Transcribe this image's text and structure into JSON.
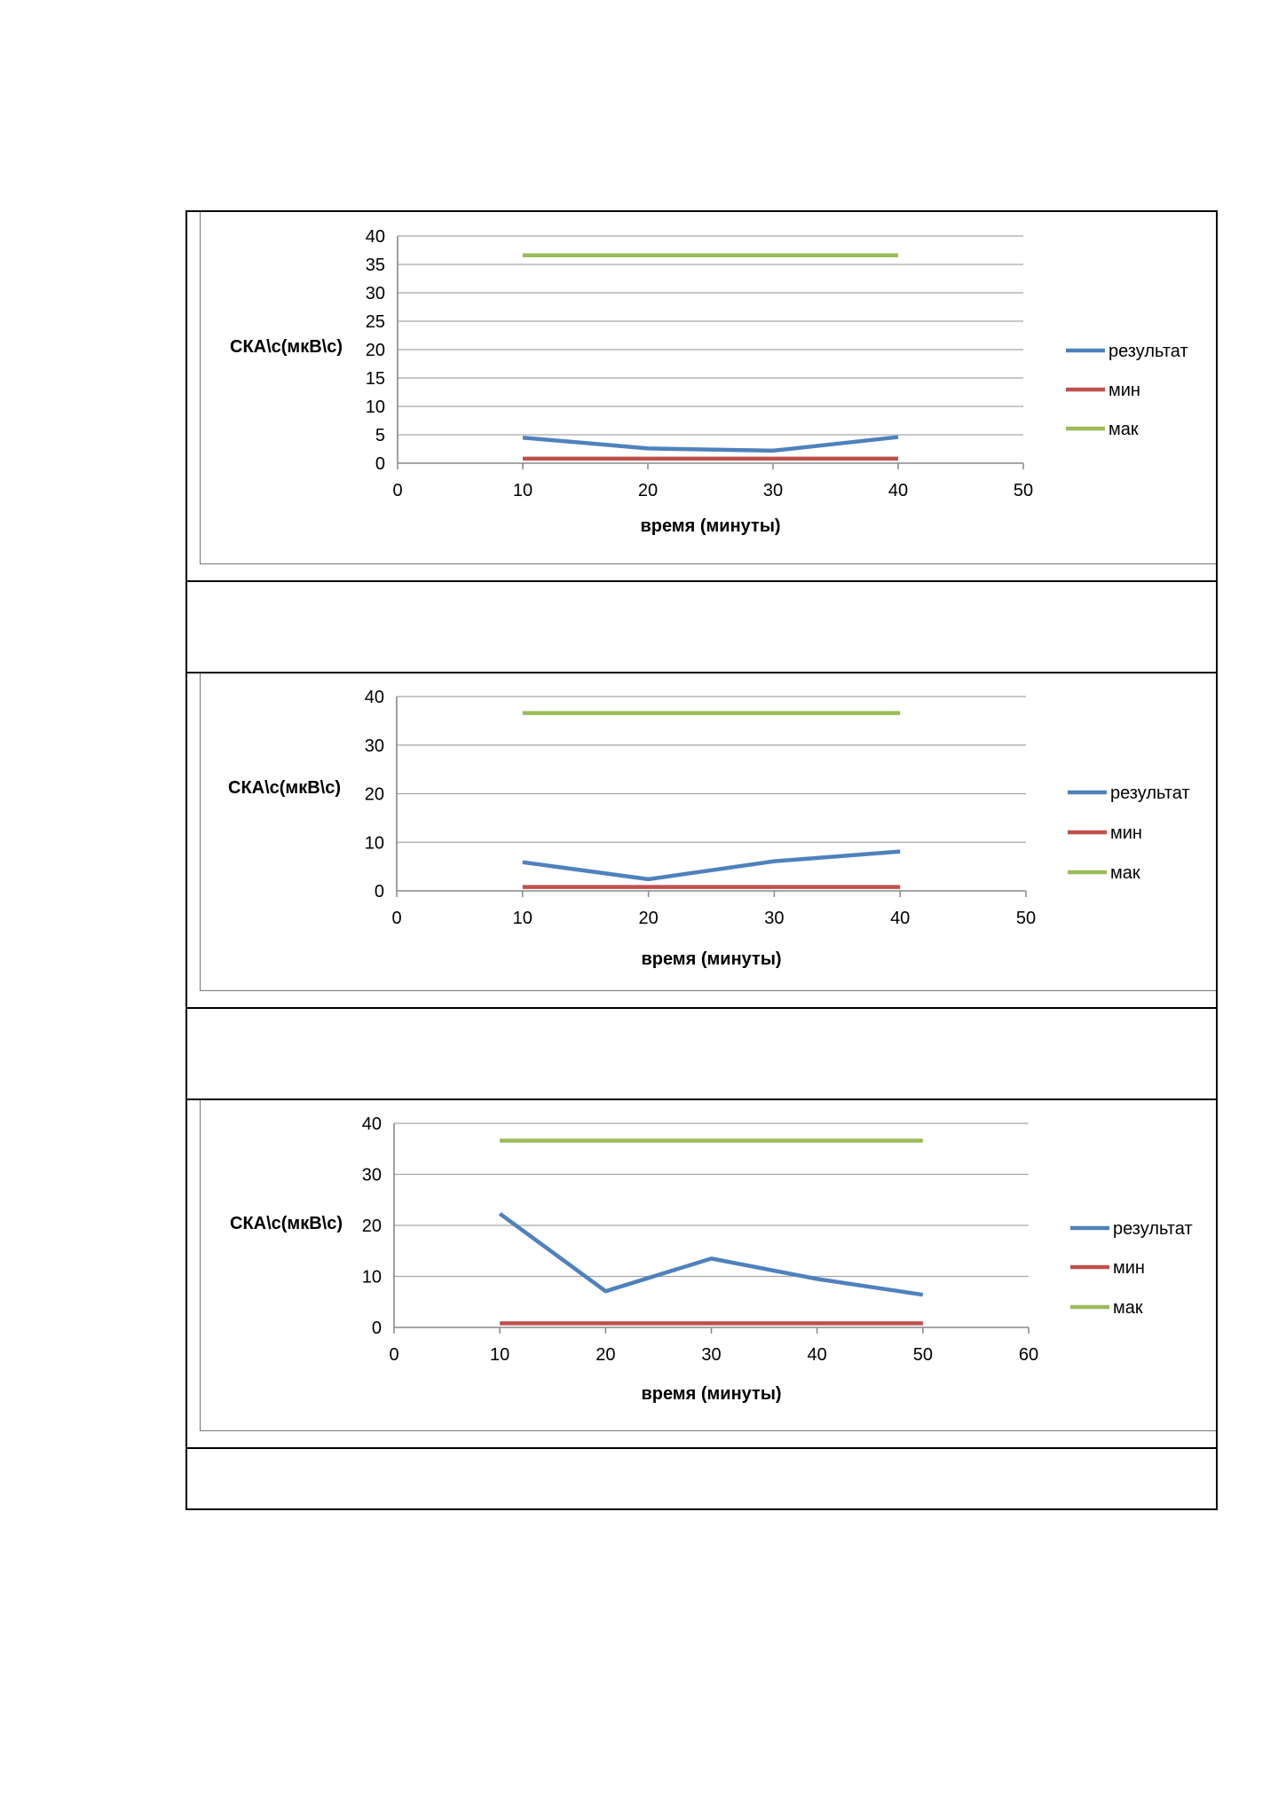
{
  "chart_data": [
    {
      "type": "line",
      "xlabel": "время (минуты)",
      "ylabel": "СКА\\с(мкВ\\с)",
      "xlim": [
        0,
        50
      ],
      "ylim": [
        0,
        40
      ],
      "xticks": [
        0,
        10,
        20,
        30,
        40,
        50
      ],
      "yticks": [
        0,
        5,
        10,
        15,
        20,
        25,
        30,
        35,
        40
      ],
      "grid": true,
      "legend_position": "right",
      "series": [
        {
          "name": "результат",
          "color": "#4f81bd",
          "x": [
            10,
            20,
            30,
            40
          ],
          "y": [
            4.5,
            2.6,
            2.2,
            4.6
          ]
        },
        {
          "name": "мин",
          "color": "#c0504d",
          "x": [
            10,
            20,
            30,
            40
          ],
          "y": [
            0.8,
            0.8,
            0.8,
            0.8
          ]
        },
        {
          "name": "мак",
          "color": "#9bbb59",
          "x": [
            10,
            20,
            30,
            40
          ],
          "y": [
            36.6,
            36.6,
            36.6,
            36.6
          ]
        }
      ]
    },
    {
      "type": "line",
      "xlabel": "время (минуты)",
      "ylabel": "СКА\\с(мкВ\\с)",
      "xlim": [
        0,
        50
      ],
      "ylim": [
        0,
        40
      ],
      "xticks": [
        0,
        10,
        20,
        30,
        40,
        50
      ],
      "yticks": [
        0,
        10,
        20,
        30,
        40
      ],
      "grid": true,
      "legend_position": "right",
      "series": [
        {
          "name": "результат",
          "color": "#4f81bd",
          "x": [
            10,
            20,
            30,
            40
          ],
          "y": [
            5.9,
            2.4,
            6.1,
            8.1
          ]
        },
        {
          "name": "мин",
          "color": "#c0504d",
          "x": [
            10,
            20,
            30,
            40
          ],
          "y": [
            0.8,
            0.8,
            0.8,
            0.8
          ]
        },
        {
          "name": "мак",
          "color": "#9bbb59",
          "x": [
            10,
            20,
            30,
            40
          ],
          "y": [
            36.6,
            36.6,
            36.6,
            36.6
          ]
        }
      ]
    },
    {
      "type": "line",
      "xlabel": "время (минуты)",
      "ylabel": "СКА\\с(мкВ\\с)",
      "xlim": [
        0,
        60
      ],
      "ylim": [
        0,
        40
      ],
      "xticks": [
        0,
        10,
        20,
        30,
        40,
        50,
        60
      ],
      "yticks": [
        0,
        10,
        20,
        30,
        40
      ],
      "grid": true,
      "legend_position": "right",
      "series": [
        {
          "name": "результат",
          "color": "#4f81bd",
          "x": [
            10,
            20,
            30,
            40,
            50
          ],
          "y": [
            22.3,
            7.1,
            13.5,
            9.5,
            6.4
          ]
        },
        {
          "name": "мин",
          "color": "#c0504d",
          "x": [
            10,
            20,
            30,
            40,
            50
          ],
          "y": [
            0.8,
            0.8,
            0.8,
            0.8,
            0.8
          ]
        },
        {
          "name": "мак",
          "color": "#9bbb59",
          "x": [
            10,
            20,
            30,
            40,
            50
          ],
          "y": [
            36.6,
            36.6,
            36.6,
            36.6,
            36.6
          ]
        }
      ]
    }
  ]
}
